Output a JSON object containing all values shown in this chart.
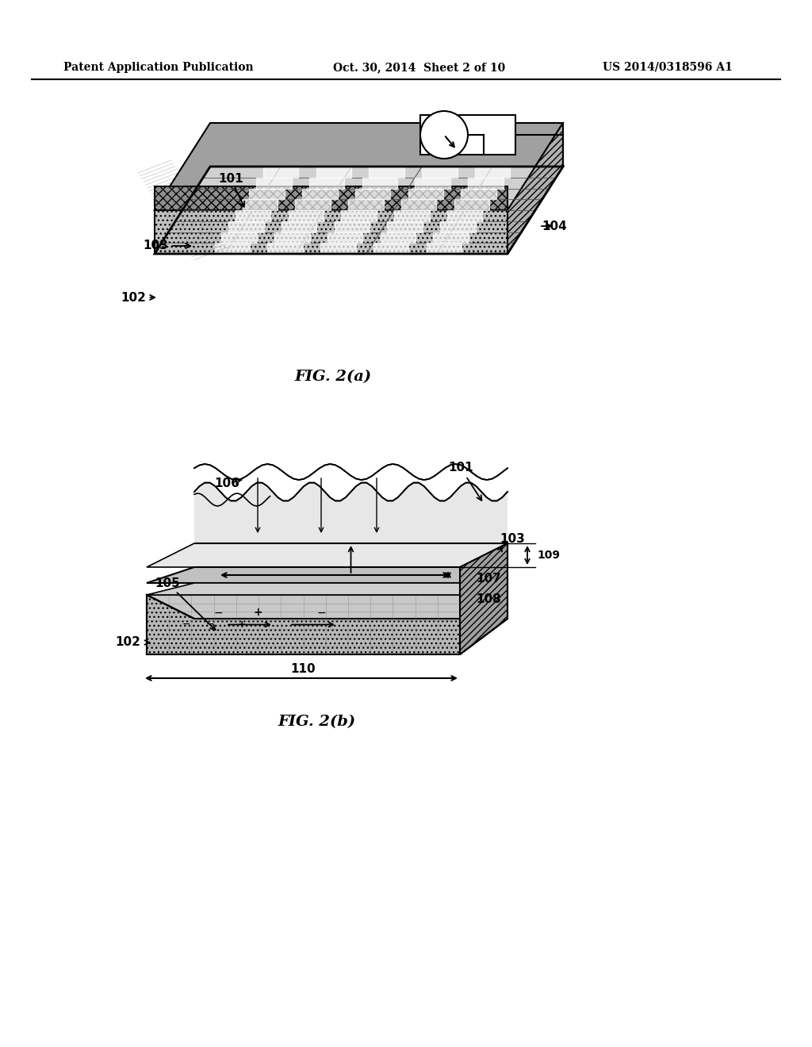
{
  "header_left": "Patent Application Publication",
  "header_mid": "Oct. 30, 2014  Sheet 2 of 10",
  "header_right": "US 2014/0318596 A1",
  "fig_a_label": "FIG. 2(a)",
  "fig_b_label": "FIG. 2(b)",
  "bg_color": "#ffffff",
  "text_color": "#000000",
  "hatch_color": "#333333"
}
